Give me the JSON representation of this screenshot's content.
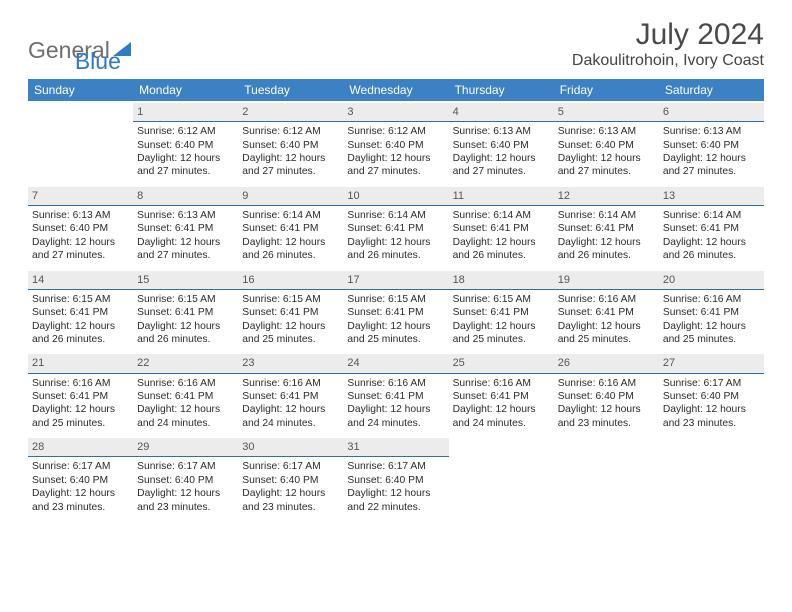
{
  "logo": {
    "part1": "General",
    "part2": "Blue"
  },
  "title": "July 2024",
  "location": "Dakoulitrohoin, Ivory Coast",
  "colors": {
    "header_bg": "#3b82c4",
    "header_text": "#ffffff",
    "daynum_bg": "#ececec",
    "daynum_border": "#2f6fa8",
    "logo_gray": "#6d6e71",
    "logo_blue": "#2f7bbf"
  },
  "dayheads": [
    "Sunday",
    "Monday",
    "Tuesday",
    "Wednesday",
    "Thursday",
    "Friday",
    "Saturday"
  ],
  "weeks": [
    [
      {
        "num": "",
        "text": ""
      },
      {
        "num": "1",
        "text": "Sunrise: 6:12 AM\nSunset: 6:40 PM\nDaylight: 12 hours and 27 minutes."
      },
      {
        "num": "2",
        "text": "Sunrise: 6:12 AM\nSunset: 6:40 PM\nDaylight: 12 hours and 27 minutes."
      },
      {
        "num": "3",
        "text": "Sunrise: 6:12 AM\nSunset: 6:40 PM\nDaylight: 12 hours and 27 minutes."
      },
      {
        "num": "4",
        "text": "Sunrise: 6:13 AM\nSunset: 6:40 PM\nDaylight: 12 hours and 27 minutes."
      },
      {
        "num": "5",
        "text": "Sunrise: 6:13 AM\nSunset: 6:40 PM\nDaylight: 12 hours and 27 minutes."
      },
      {
        "num": "6",
        "text": "Sunrise: 6:13 AM\nSunset: 6:40 PM\nDaylight: 12 hours and 27 minutes."
      }
    ],
    [
      {
        "num": "7",
        "text": "Sunrise: 6:13 AM\nSunset: 6:40 PM\nDaylight: 12 hours and 27 minutes."
      },
      {
        "num": "8",
        "text": "Sunrise: 6:13 AM\nSunset: 6:41 PM\nDaylight: 12 hours and 27 minutes."
      },
      {
        "num": "9",
        "text": "Sunrise: 6:14 AM\nSunset: 6:41 PM\nDaylight: 12 hours and 26 minutes."
      },
      {
        "num": "10",
        "text": "Sunrise: 6:14 AM\nSunset: 6:41 PM\nDaylight: 12 hours and 26 minutes."
      },
      {
        "num": "11",
        "text": "Sunrise: 6:14 AM\nSunset: 6:41 PM\nDaylight: 12 hours and 26 minutes."
      },
      {
        "num": "12",
        "text": "Sunrise: 6:14 AM\nSunset: 6:41 PM\nDaylight: 12 hours and 26 minutes."
      },
      {
        "num": "13",
        "text": "Sunrise: 6:14 AM\nSunset: 6:41 PM\nDaylight: 12 hours and 26 minutes."
      }
    ],
    [
      {
        "num": "14",
        "text": "Sunrise: 6:15 AM\nSunset: 6:41 PM\nDaylight: 12 hours and 26 minutes."
      },
      {
        "num": "15",
        "text": "Sunrise: 6:15 AM\nSunset: 6:41 PM\nDaylight: 12 hours and 26 minutes."
      },
      {
        "num": "16",
        "text": "Sunrise: 6:15 AM\nSunset: 6:41 PM\nDaylight: 12 hours and 25 minutes."
      },
      {
        "num": "17",
        "text": "Sunrise: 6:15 AM\nSunset: 6:41 PM\nDaylight: 12 hours and 25 minutes."
      },
      {
        "num": "18",
        "text": "Sunrise: 6:15 AM\nSunset: 6:41 PM\nDaylight: 12 hours and 25 minutes."
      },
      {
        "num": "19",
        "text": "Sunrise: 6:16 AM\nSunset: 6:41 PM\nDaylight: 12 hours and 25 minutes."
      },
      {
        "num": "20",
        "text": "Sunrise: 6:16 AM\nSunset: 6:41 PM\nDaylight: 12 hours and 25 minutes."
      }
    ],
    [
      {
        "num": "21",
        "text": "Sunrise: 6:16 AM\nSunset: 6:41 PM\nDaylight: 12 hours and 25 minutes."
      },
      {
        "num": "22",
        "text": "Sunrise: 6:16 AM\nSunset: 6:41 PM\nDaylight: 12 hours and 24 minutes."
      },
      {
        "num": "23",
        "text": "Sunrise: 6:16 AM\nSunset: 6:41 PM\nDaylight: 12 hours and 24 minutes."
      },
      {
        "num": "24",
        "text": "Sunrise: 6:16 AM\nSunset: 6:41 PM\nDaylight: 12 hours and 24 minutes."
      },
      {
        "num": "25",
        "text": "Sunrise: 6:16 AM\nSunset: 6:41 PM\nDaylight: 12 hours and 24 minutes."
      },
      {
        "num": "26",
        "text": "Sunrise: 6:16 AM\nSunset: 6:40 PM\nDaylight: 12 hours and 23 minutes."
      },
      {
        "num": "27",
        "text": "Sunrise: 6:17 AM\nSunset: 6:40 PM\nDaylight: 12 hours and 23 minutes."
      }
    ],
    [
      {
        "num": "28",
        "text": "Sunrise: 6:17 AM\nSunset: 6:40 PM\nDaylight: 12 hours and 23 minutes."
      },
      {
        "num": "29",
        "text": "Sunrise: 6:17 AM\nSunset: 6:40 PM\nDaylight: 12 hours and 23 minutes."
      },
      {
        "num": "30",
        "text": "Sunrise: 6:17 AM\nSunset: 6:40 PM\nDaylight: 12 hours and 23 minutes."
      },
      {
        "num": "31",
        "text": "Sunrise: 6:17 AM\nSunset: 6:40 PM\nDaylight: 12 hours and 22 minutes."
      },
      {
        "num": "",
        "text": ""
      },
      {
        "num": "",
        "text": ""
      },
      {
        "num": "",
        "text": ""
      }
    ]
  ]
}
